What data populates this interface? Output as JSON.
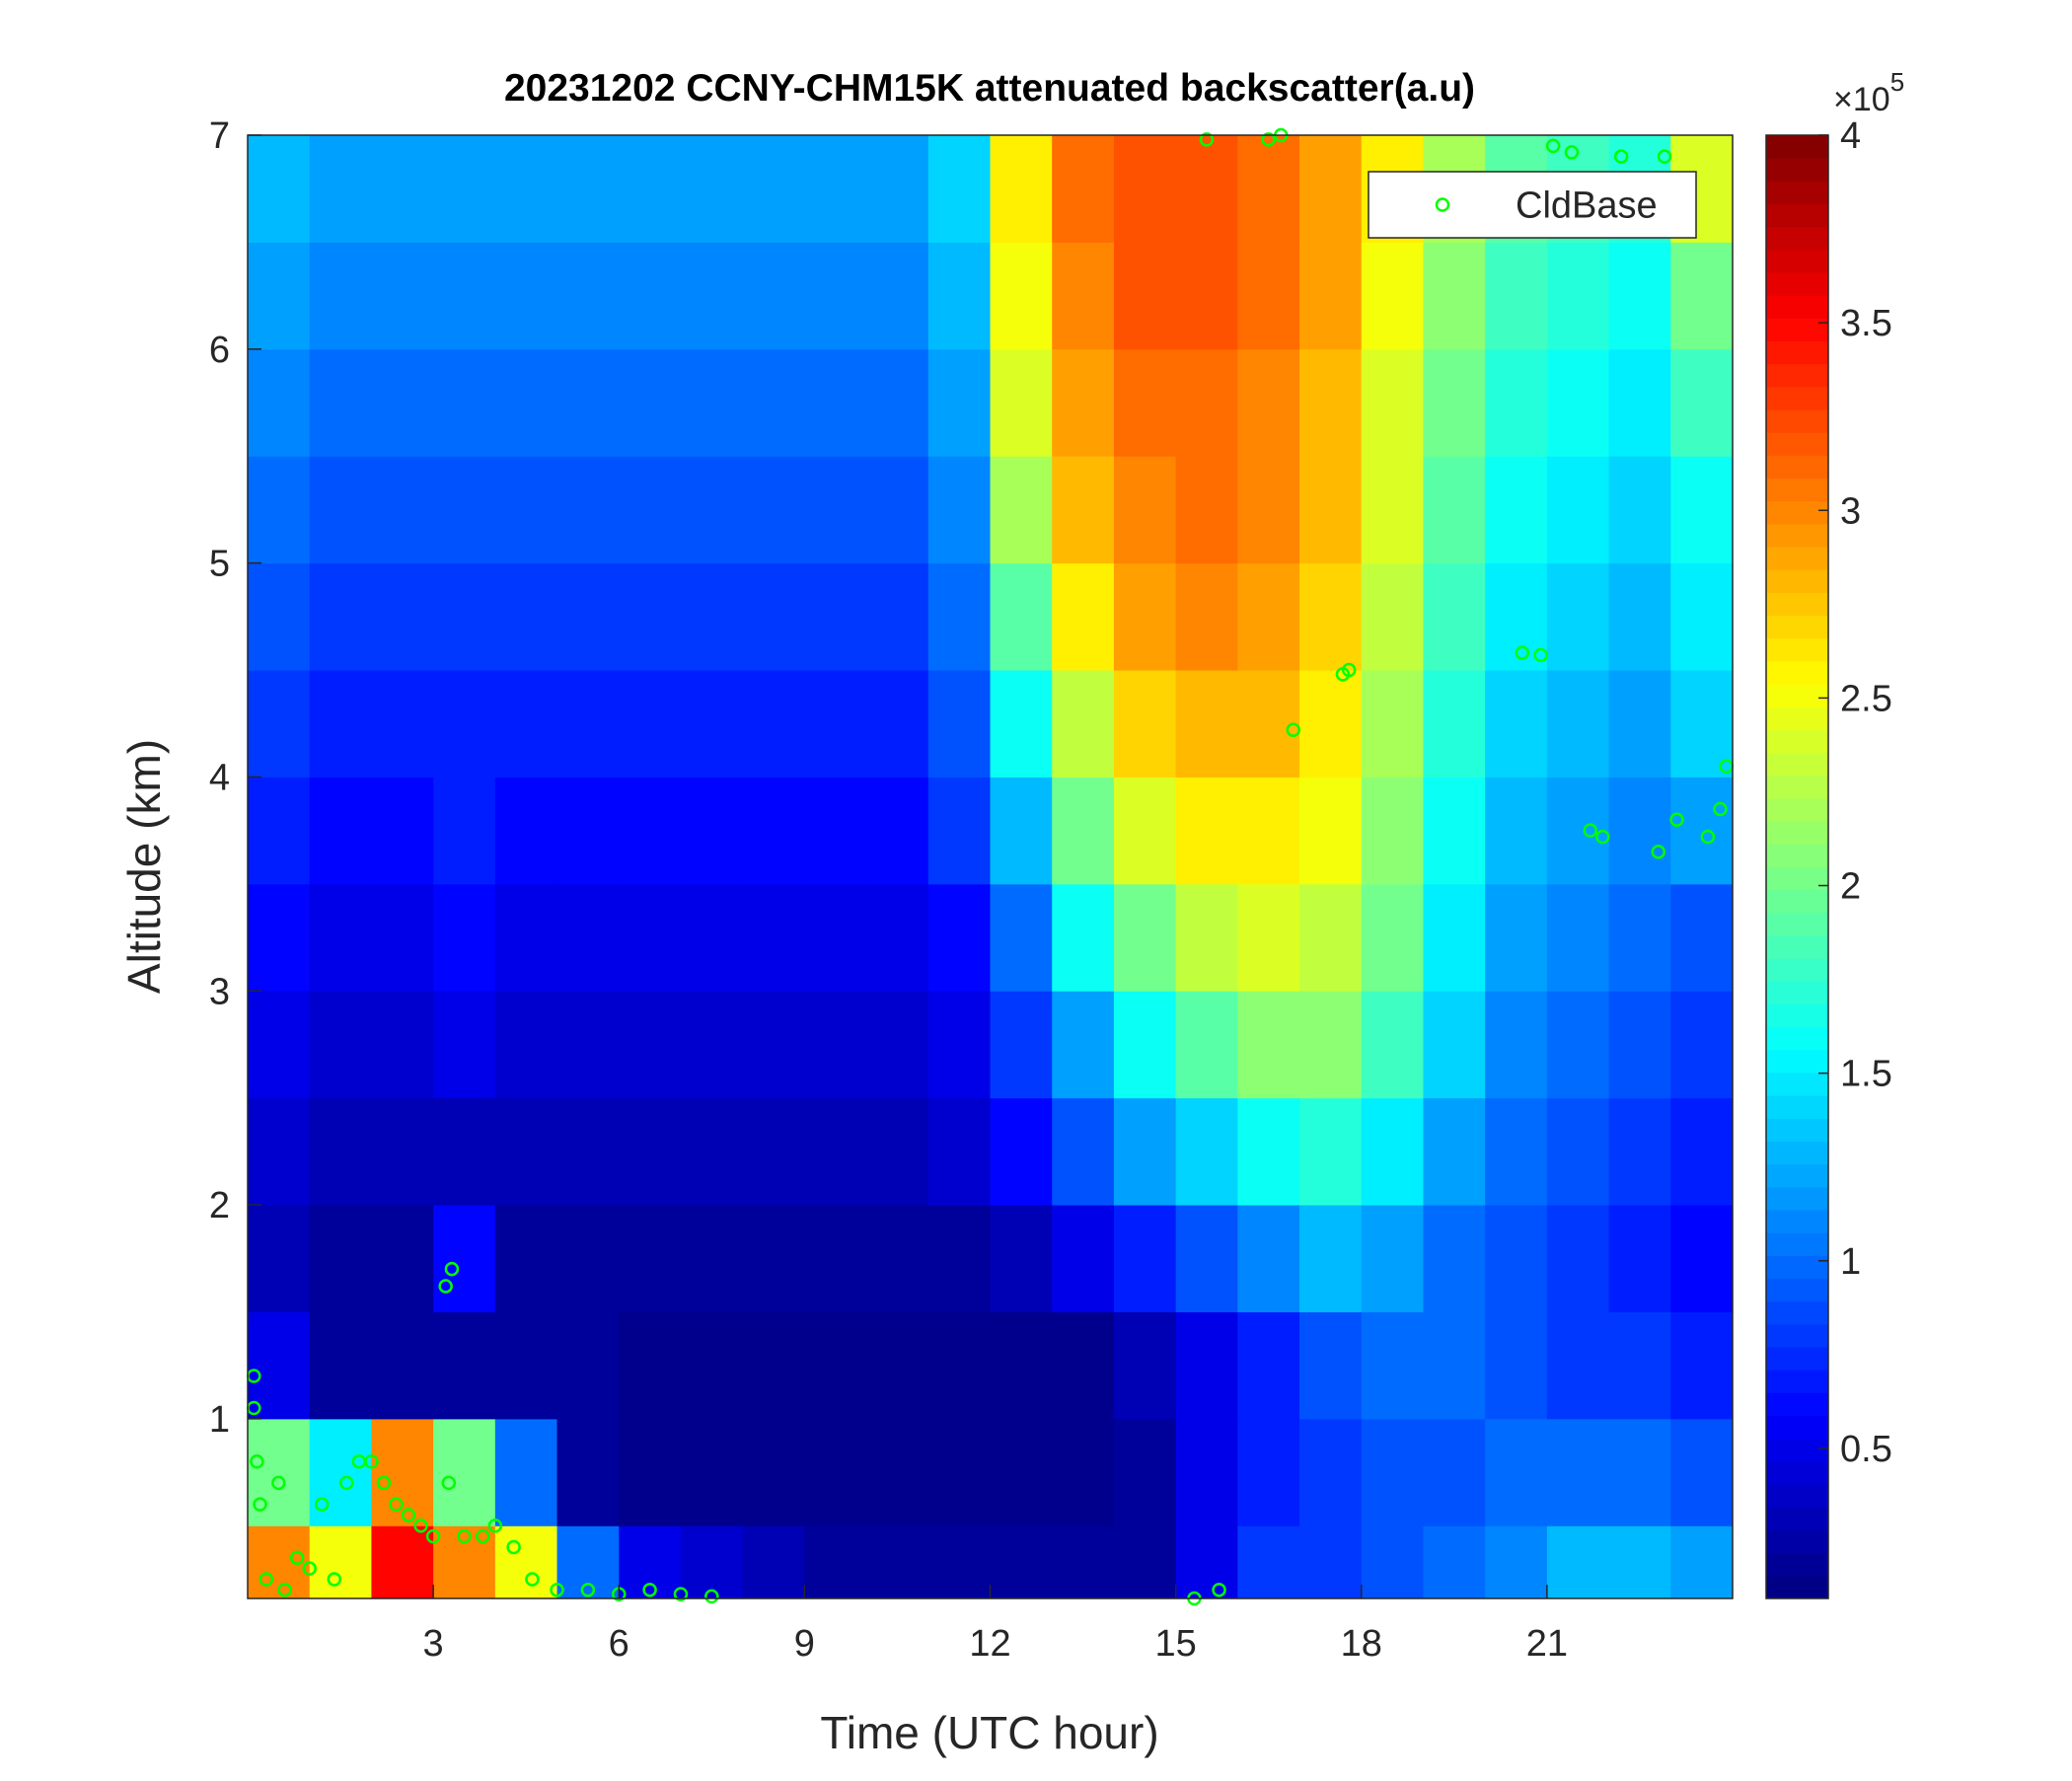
{
  "chart_data": {
    "type": "heatmap",
    "title": "20231202 CCNY-CHM15K attenuated backscatter(a.u)",
    "xlabel": "Time (UTC hour)",
    "ylabel": "Altitude (km)",
    "xlim": [
      0,
      24
    ],
    "ylim": [
      0.16,
      7
    ],
    "xticks": [
      3,
      6,
      9,
      12,
      15,
      18,
      21
    ],
    "yticks": [
      1,
      2,
      3,
      4,
      5,
      6,
      7
    ],
    "colormap": "jet",
    "clim": [
      0.1,
      4
    ],
    "cticks": [
      0.5,
      1,
      1.5,
      2,
      2.5,
      3,
      3.5,
      4
    ],
    "colorbar_multiplier": "×10",
    "colorbar_exponent": "5",
    "x_edges": [
      0,
      1,
      2,
      3,
      4,
      5,
      6,
      7,
      8,
      9,
      10,
      11,
      12,
      13,
      14,
      15,
      16,
      17,
      18,
      19,
      20,
      21,
      22,
      23,
      24
    ],
    "y_edges": [
      0.16,
      0.5,
      1,
      1.5,
      2,
      2.5,
      3,
      3.5,
      4,
      4.5,
      5,
      5.5,
      6,
      6.5,
      7
    ],
    "z": [
      [
        3.0,
        2.5,
        3.5,
        3.0,
        2.5,
        1.0,
        0.5,
        0.4,
        0.3,
        0.2,
        0.2,
        0.2,
        0.2,
        0.2,
        0.2,
        0.5,
        0.8,
        0.8,
        0.9,
        1.0,
        1.1,
        1.3,
        1.3,
        1.2
      ],
      [
        2.0,
        1.5,
        3.0,
        2.0,
        1.0,
        0.2,
        0.15,
        0.15,
        0.15,
        0.15,
        0.15,
        0.15,
        0.15,
        0.15,
        0.2,
        0.5,
        0.7,
        0.8,
        0.9,
        0.9,
        1.0,
        1.0,
        1.0,
        0.9
      ],
      [
        0.5,
        0.2,
        0.2,
        0.2,
        0.2,
        0.2,
        0.15,
        0.15,
        0.15,
        0.15,
        0.15,
        0.15,
        0.15,
        0.15,
        0.3,
        0.5,
        0.7,
        0.9,
        1.0,
        1.0,
        0.9,
        0.8,
        0.8,
        0.7
      ],
      [
        0.3,
        0.2,
        0.2,
        0.6,
        0.2,
        0.2,
        0.2,
        0.2,
        0.2,
        0.2,
        0.2,
        0.2,
        0.3,
        0.5,
        0.7,
        0.9,
        1.1,
        1.3,
        1.2,
        1.0,
        0.9,
        0.8,
        0.7,
        0.6
      ],
      [
        0.4,
        0.3,
        0.3,
        0.3,
        0.3,
        0.3,
        0.3,
        0.3,
        0.3,
        0.3,
        0.3,
        0.4,
        0.6,
        0.9,
        1.2,
        1.4,
        1.6,
        1.7,
        1.5,
        1.2,
        1.0,
        0.9,
        0.8,
        0.7
      ],
      [
        0.5,
        0.4,
        0.4,
        0.5,
        0.4,
        0.4,
        0.4,
        0.4,
        0.4,
        0.4,
        0.4,
        0.5,
        0.8,
        1.2,
        1.6,
        1.9,
        2.1,
        2.1,
        1.8,
        1.4,
        1.1,
        1.0,
        0.9,
        0.8
      ],
      [
        0.6,
        0.5,
        0.5,
        0.6,
        0.5,
        0.5,
        0.5,
        0.5,
        0.5,
        0.5,
        0.5,
        0.6,
        1.0,
        1.6,
        2.0,
        2.3,
        2.4,
        2.3,
        2.0,
        1.5,
        1.2,
        1.1,
        1.0,
        0.9
      ],
      [
        0.7,
        0.6,
        0.6,
        0.7,
        0.6,
        0.6,
        0.6,
        0.6,
        0.6,
        0.6,
        0.6,
        0.8,
        1.3,
        2.0,
        2.4,
        2.6,
        2.6,
        2.5,
        2.1,
        1.6,
        1.3,
        1.2,
        1.1,
        1.2
      ],
      [
        0.8,
        0.7,
        0.7,
        0.7,
        0.7,
        0.7,
        0.7,
        0.7,
        0.7,
        0.7,
        0.7,
        0.9,
        1.6,
        2.3,
        2.7,
        2.8,
        2.8,
        2.6,
        2.2,
        1.7,
        1.4,
        1.3,
        1.2,
        1.4
      ],
      [
        0.9,
        0.8,
        0.8,
        0.8,
        0.8,
        0.8,
        0.8,
        0.8,
        0.8,
        0.8,
        0.8,
        1.0,
        1.9,
        2.6,
        2.9,
        3.0,
        2.9,
        2.7,
        2.3,
        1.8,
        1.5,
        1.4,
        1.3,
        1.5
      ],
      [
        1.0,
        0.9,
        0.9,
        0.9,
        0.9,
        0.9,
        0.9,
        0.9,
        0.9,
        0.9,
        0.9,
        1.1,
        2.2,
        2.8,
        3.0,
        3.1,
        3.0,
        2.8,
        2.4,
        1.9,
        1.6,
        1.5,
        1.4,
        1.6
      ],
      [
        1.1,
        1.0,
        1.0,
        1.0,
        1.0,
        1.0,
        1.0,
        1.0,
        1.0,
        1.0,
        1.0,
        1.2,
        2.4,
        2.9,
        3.1,
        3.1,
        3.0,
        2.8,
        2.4,
        2.0,
        1.7,
        1.6,
        1.5,
        1.8
      ],
      [
        1.2,
        1.1,
        1.1,
        1.1,
        1.1,
        1.1,
        1.1,
        1.1,
        1.1,
        1.1,
        1.1,
        1.3,
        2.5,
        3.0,
        3.2,
        3.2,
        3.1,
        2.9,
        2.5,
        2.1,
        1.8,
        1.7,
        1.6,
        2.0
      ],
      [
        1.3,
        1.2,
        1.2,
        1.2,
        1.2,
        1.2,
        1.2,
        1.2,
        1.2,
        1.2,
        1.2,
        1.4,
        2.6,
        3.1,
        3.2,
        3.2,
        3.1,
        2.9,
        2.6,
        2.2,
        1.9,
        1.8,
        1.7,
        2.4
      ]
    ],
    "series": [
      {
        "name": "CldBase",
        "type": "scatter",
        "color": "#00ff00",
        "x": [
          0.1,
          0.1,
          0.15,
          0.2,
          0.3,
          0.5,
          0.6,
          0.8,
          1.0,
          1.2,
          1.4,
          1.6,
          1.8,
          2.0,
          2.2,
          2.4,
          2.6,
          2.8,
          3.0,
          3.2,
          3.3,
          3.25,
          3.5,
          3.8,
          4.0,
          4.3,
          4.6,
          5.0,
          5.5,
          6.0,
          6.5,
          7.0,
          7.5,
          15.3,
          15.7,
          16.5,
          16.7,
          15.5,
          16.9,
          17.7,
          17.8,
          20.6,
          20.9,
          21.1,
          21.4,
          21.7,
          21.9,
          22.2,
          22.8,
          22.9,
          23.1,
          23.6,
          23.8,
          23.9
        ],
        "y": [
          1.2,
          1.05,
          0.8,
          0.6,
          0.25,
          0.7,
          0.2,
          0.35,
          0.3,
          0.6,
          0.25,
          0.7,
          0.8,
          0.8,
          0.7,
          0.6,
          0.55,
          0.5,
          0.45,
          1.62,
          1.7,
          0.7,
          0.45,
          0.45,
          0.5,
          0.4,
          0.25,
          0.2,
          0.2,
          0.18,
          0.2,
          0.18,
          0.17,
          0.16,
          0.2,
          6.98,
          7.0,
          6.98,
          4.22,
          4.48,
          4.5,
          4.58,
          4.57,
          6.95,
          6.92,
          3.75,
          3.72,
          6.9,
          3.65,
          6.9,
          3.8,
          3.72,
          3.85,
          4.05
        ]
      }
    ],
    "legend": "upper right"
  }
}
